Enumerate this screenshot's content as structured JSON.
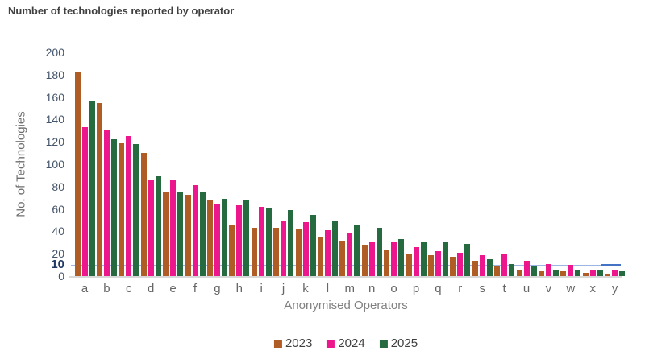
{
  "title": "Number of technologies reported by operator",
  "chart_data": {
    "type": "bar",
    "title": "Number of technologies reported by operator",
    "xlabel": "Anonymised Operators",
    "ylabel": "No. of Technologies",
    "ylim": [
      0,
      200
    ],
    "yticks": [
      0,
      20,
      40,
      60,
      80,
      100,
      120,
      140,
      160,
      180,
      200
    ],
    "grid": false,
    "legend_position": "bottom",
    "categories": [
      "a",
      "b",
      "c",
      "d",
      "e",
      "f",
      "g",
      "h",
      "i",
      "j",
      "k",
      "l",
      "m",
      "n",
      "o",
      "p",
      "q",
      "r",
      "s",
      "t",
      "u",
      "v",
      "w",
      "x",
      "y"
    ],
    "series": [
      {
        "name": "2023",
        "color": "#AF5C25",
        "values": [
          183,
          155,
          119,
          110,
          75,
          73,
          68,
          45,
          43,
          43,
          42,
          35,
          31,
          28,
          23,
          20,
          19,
          17,
          14,
          9,
          6,
          4,
          4,
          3,
          2
        ]
      },
      {
        "name": "2024",
        "color": "#EC168D",
        "values": [
          133,
          130,
          125,
          86,
          86,
          81,
          65,
          63,
          62,
          50,
          48,
          41,
          38,
          30,
          30,
          26,
          22,
          21,
          19,
          20,
          14,
          11,
          10,
          5,
          6
        ]
      },
      {
        "name": "2025",
        "color": "#256B3F",
        "values": [
          157,
          122,
          118,
          89,
          75,
          75,
          69,
          68,
          61,
          59,
          55,
          49,
          45,
          43,
          33,
          30,
          30,
          29,
          15,
          11,
          9,
          5,
          6,
          5,
          4
        ]
      }
    ],
    "reference_line": {
      "value": 10,
      "label": "10",
      "line_color": "#9CB6E3",
      "tail_color": "#4472C4",
      "label_color": "#1F3864"
    },
    "axis_line_color": "#D9D9D9"
  }
}
